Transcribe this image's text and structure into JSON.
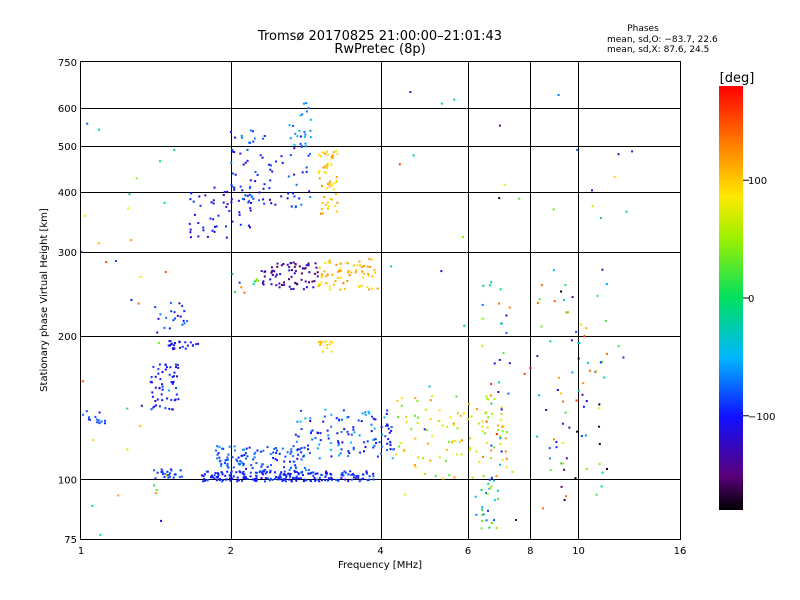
{
  "header": {
    "title": "Tromsø 20170825 21:00:00–21:01:43",
    "subtitle": "RwPretec (8p)",
    "phase_title": "Phases",
    "phase_o": "mean, sd,O: −83.7, 22.6",
    "phase_x": "mean, sd,X:  87.6, 24.5"
  },
  "chart_data": {
    "type": "scatter",
    "xlabel": "Frequency [MHz]",
    "ylabel": "Stationary phase Virtual Height [km]",
    "x_scale": "log",
    "y_scale": "log",
    "xlim": [
      1,
      16
    ],
    "ylim": [
      75,
      750
    ],
    "x_ticks": [
      1,
      2,
      4,
      6,
      8,
      10,
      16
    ],
    "x_tick_labels": [
      "1",
      "2",
      "4",
      "6",
      "8",
      "10",
      "16"
    ],
    "y_ticks": [
      75,
      100,
      200,
      300,
      400,
      500,
      600,
      750
    ],
    "y_tick_labels": [
      "75",
      "100",
      "200",
      "300",
      "400",
      "500",
      "600",
      "750"
    ],
    "grid": true,
    "colorbar": {
      "label": "[deg]",
      "range": [
        -180,
        180
      ],
      "ticks": [
        100,
        0,
        -100
      ],
      "tick_labels": [
        "100",
        "0",
        "−100"
      ],
      "colormap": "rainbow"
    },
    "clusters": [
      {
        "x": [
          1.75,
          3.9
        ],
        "y": [
          99,
          104
        ],
        "phase": [
          -110,
          -80
        ],
        "count": 220
      },
      {
        "x": [
          1.85,
          2.9
        ],
        "y": [
          104,
          118
        ],
        "phase": [
          -100,
          -60
        ],
        "count": 110
      },
      {
        "x": [
          2.7,
          4.3
        ],
        "y": [
          110,
          140
        ],
        "phase": [
          -120,
          -40
        ],
        "count": 120
      },
      {
        "x": [
          4.3,
          7.2
        ],
        "y": [
          100,
          150
        ],
        "phase": [
          20,
          130
        ],
        "count": 100
      },
      {
        "x": [
          6.2,
          6.9
        ],
        "y": [
          78,
          100
        ],
        "phase": [
          -100,
          60
        ],
        "count": 25
      },
      {
        "x": [
          1.38,
          1.58
        ],
        "y": [
          140,
          175
        ],
        "phase": [
          -120,
          -80
        ],
        "count": 55
      },
      {
        "x": [
          1.5,
          1.72
        ],
        "y": [
          187,
          196
        ],
        "phase": [
          -120,
          -90
        ],
        "count": 25
      },
      {
        "x": [
          1.4,
          1.65
        ],
        "y": [
          205,
          235
        ],
        "phase": [
          -120,
          -70
        ],
        "count": 20
      },
      {
        "x": [
          1.4,
          1.6
        ],
        "y": [
          100,
          105
        ],
        "phase": [
          -100,
          -70
        ],
        "count": 25
      },
      {
        "x": [
          1.0,
          1.12
        ],
        "y": [
          130,
          140
        ],
        "phase": [
          -100,
          -70
        ],
        "count": 15
      },
      {
        "x": [
          1.65,
          2.2
        ],
        "y": [
          320,
          410
        ],
        "phase": [
          -120,
          -90
        ],
        "count": 55
      },
      {
        "x": [
          2.0,
          2.9
        ],
        "y": [
          370,
          540
        ],
        "phase": [
          -120,
          -60
        ],
        "count": 85
      },
      {
        "x": [
          2.6,
          2.9
        ],
        "y": [
          500,
          620
        ],
        "phase": [
          -80,
          -40
        ],
        "count": 20
      },
      {
        "x": [
          3.0,
          3.3
        ],
        "y": [
          360,
          490
        ],
        "phase": [
          80,
          130
        ],
        "count": 55
      },
      {
        "x": [
          2.3,
          3.0
        ],
        "y": [
          250,
          285
        ],
        "phase": [
          -160,
          -110
        ],
        "count": 70
      },
      {
        "x": [
          3.0,
          4.0
        ],
        "y": [
          250,
          290
        ],
        "phase": [
          80,
          130
        ],
        "count": 70
      },
      {
        "x": [
          3.0,
          3.2
        ],
        "y": [
          185,
          195
        ],
        "phase": [
          80,
          110
        ],
        "count": 15
      },
      {
        "x": [
          2.0,
          2.3
        ],
        "y": [
          240,
          270
        ],
        "phase": [
          -150,
          170
        ],
        "count": 10
      },
      {
        "x": [
          8.2,
          11.5
        ],
        "y": [
          85,
          260
        ],
        "phase": [
          -180,
          170
        ],
        "count": 70
      },
      {
        "x": [
          6.4,
          7.3
        ],
        "y": [
          95,
          270
        ],
        "phase": [
          -140,
          170
        ],
        "count": 35
      },
      {
        "x": [
          1.0,
          1.6
        ],
        "y": [
          75,
          620
        ],
        "phase": [
          -150,
          170
        ],
        "count": 35
      },
      {
        "x": [
          4.0,
          13.0
        ],
        "y": [
          75,
          650
        ],
        "phase": [
          -180,
          180
        ],
        "count": 45
      }
    ]
  }
}
